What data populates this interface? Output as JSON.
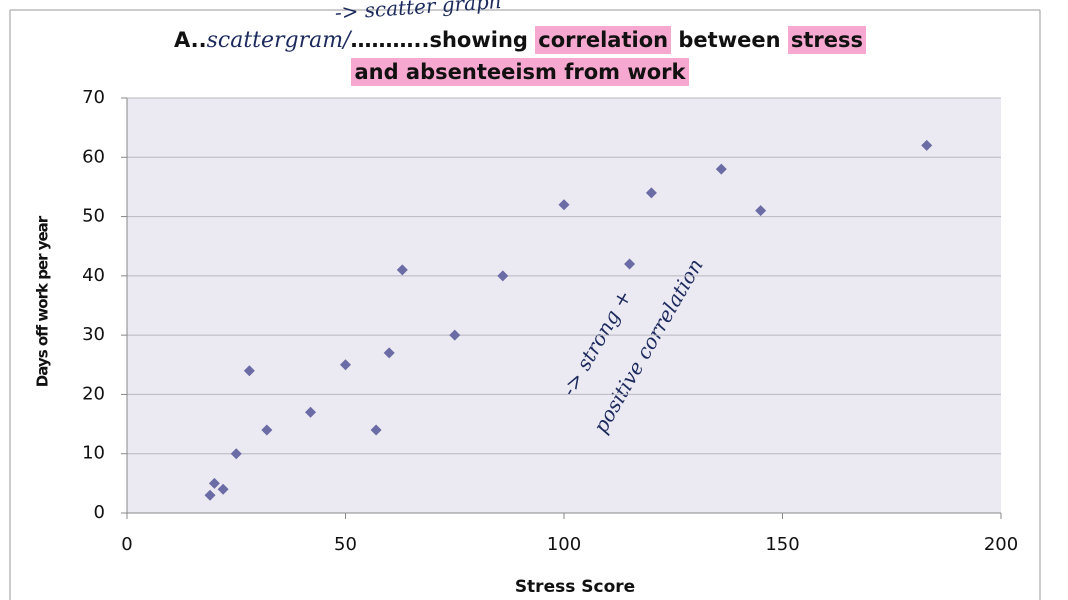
{
  "chart_data": {
    "type": "scatter",
    "title_lines": [
      [
        {
          "text": "A.."
        },
        {
          "text": "scattergram/",
          "handwritten": true
        },
        {
          "text": "………..showing "
        },
        {
          "text": "correlation",
          "highlight": true
        },
        {
          "text": " between "
        },
        {
          "text": "stress",
          "highlight": true
        }
      ],
      [
        {
          "text": "and absenteeism from work",
          "highlight": true
        }
      ]
    ],
    "annotations": [
      "-> scatter graph",
      "-> strong +",
      "positive correlation"
    ],
    "x_label": "Stress Score",
    "y_label": "Days off work per year",
    "x": [
      19,
      20,
      22,
      25,
      28,
      32,
      42,
      50,
      57,
      60,
      63,
      75,
      86,
      100,
      115,
      120,
      136,
      145,
      183
    ],
    "values": [
      3,
      5,
      4,
      10,
      24,
      14,
      17,
      25,
      14,
      27,
      41,
      30,
      40,
      52,
      42,
      54,
      58,
      51,
      62
    ],
    "color": "#6b6ba6",
    "xlim": [
      0,
      200
    ],
    "xticks": [
      0,
      50,
      100,
      150,
      200
    ],
    "ylim": [
      0,
      70
    ],
    "yticks": [
      0,
      10,
      20,
      30,
      40,
      50,
      60,
      70
    ],
    "grid": true
  }
}
